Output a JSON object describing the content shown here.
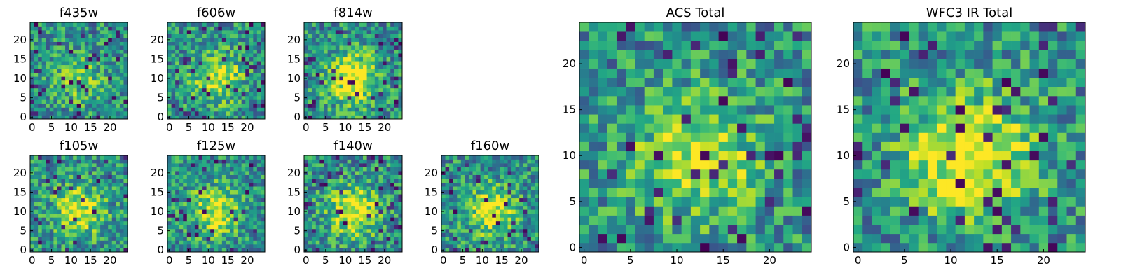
{
  "chart_data": [
    {
      "type": "heatmap",
      "title": "f435w",
      "x_ticks": [
        0,
        5,
        10,
        15,
        20
      ],
      "y_ticks": [
        0,
        5,
        10,
        15,
        20
      ],
      "xlim": [
        0,
        25
      ],
      "ylim": [
        0,
        25
      ],
      "grid_size": [
        25,
        25
      ],
      "colormap": "viridis",
      "signal": 0.25,
      "seed": 11
    },
    {
      "type": "heatmap",
      "title": "f606w",
      "x_ticks": [
        0,
        5,
        10,
        15,
        20
      ],
      "y_ticks": [
        0,
        5,
        10,
        15,
        20
      ],
      "xlim": [
        0,
        25
      ],
      "ylim": [
        0,
        25
      ],
      "grid_size": [
        25,
        25
      ],
      "colormap": "viridis",
      "signal": 0.45,
      "seed": 23
    },
    {
      "type": "heatmap",
      "title": "f814w",
      "x_ticks": [
        0,
        5,
        10,
        15,
        20
      ],
      "y_ticks": [
        0,
        5,
        10,
        15,
        20
      ],
      "xlim": [
        0,
        25
      ],
      "ylim": [
        0,
        25
      ],
      "grid_size": [
        25,
        25
      ],
      "colormap": "viridis",
      "signal": 0.55,
      "seed": 37
    },
    {
      "type": "heatmap",
      "title": "f105w",
      "x_ticks": [
        0,
        5,
        10,
        15,
        20
      ],
      "y_ticks": [
        0,
        5,
        10,
        15,
        20
      ],
      "xlim": [
        0,
        25
      ],
      "ylim": [
        0,
        25
      ],
      "grid_size": [
        25,
        25
      ],
      "colormap": "viridis",
      "signal": 0.45,
      "seed": 41
    },
    {
      "type": "heatmap",
      "title": "f125w",
      "x_ticks": [
        0,
        5,
        10,
        15,
        20
      ],
      "y_ticks": [
        0,
        5,
        10,
        15,
        20
      ],
      "xlim": [
        0,
        25
      ],
      "ylim": [
        0,
        25
      ],
      "grid_size": [
        25,
        25
      ],
      "colormap": "viridis",
      "signal": 0.45,
      "seed": 53
    },
    {
      "type": "heatmap",
      "title": "f140w",
      "x_ticks": [
        0,
        5,
        10,
        15,
        20
      ],
      "y_ticks": [
        0,
        5,
        10,
        15,
        20
      ],
      "xlim": [
        0,
        25
      ],
      "ylim": [
        0,
        25
      ],
      "grid_size": [
        25,
        25
      ],
      "colormap": "viridis",
      "signal": 0.5,
      "seed": 67
    },
    {
      "type": "heatmap",
      "title": "f160w",
      "x_ticks": [
        0,
        5,
        10,
        15,
        20
      ],
      "y_ticks": [
        0,
        5,
        10,
        15,
        20
      ],
      "xlim": [
        0,
        25
      ],
      "ylim": [
        0,
        25
      ],
      "grid_size": [
        25,
        25
      ],
      "colormap": "viridis",
      "signal": 0.45,
      "seed": 79
    },
    {
      "type": "heatmap",
      "title": "ACS Total",
      "x_ticks": [
        0,
        5,
        10,
        15,
        20
      ],
      "y_ticks": [
        0,
        5,
        10,
        15,
        20
      ],
      "xlim": [
        0,
        25
      ],
      "ylim": [
        0,
        25
      ],
      "grid_size": [
        25,
        25
      ],
      "colormap": "viridis",
      "signal": 0.45,
      "seed": 97
    },
    {
      "type": "heatmap",
      "title": "WFC3 IR Total",
      "x_ticks": [
        0,
        5,
        10,
        15,
        20
      ],
      "y_ticks": [
        0,
        5,
        10,
        15,
        20
      ],
      "xlim": [
        0,
        25
      ],
      "ylim": [
        0,
        25
      ],
      "grid_size": [
        25,
        25
      ],
      "colormap": "viridis",
      "signal": 0.6,
      "seed": 131
    }
  ]
}
